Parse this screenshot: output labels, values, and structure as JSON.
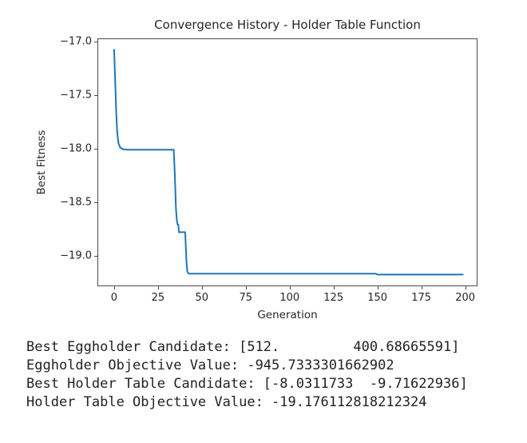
{
  "chart_data": {
    "type": "line",
    "title": "Convergence History - Holder Table Function",
    "xlabel": "Generation",
    "ylabel": "Best Fitness",
    "xlim": [
      -9.5,
      207
    ],
    "ylim": [
      -19.285,
      -16.97
    ],
    "grid": false,
    "legend": "none",
    "line_color": "#1f77b4",
    "axis_color": "#4a4a4a",
    "text_color": "#262626",
    "xticks": {
      "values": [
        0,
        25,
        50,
        75,
        100,
        125,
        150,
        175,
        200
      ],
      "labels": [
        "0",
        "25",
        "50",
        "75",
        "100",
        "125",
        "150",
        "175",
        "200"
      ]
    },
    "yticks": {
      "values": [
        -17.0,
        -17.5,
        -18.0,
        -18.5,
        -19.0
      ],
      "labels": [
        "−17.0",
        "−17.5",
        "−18.0",
        "−18.5",
        "−19.0"
      ]
    },
    "series": [
      {
        "name": "best_fitness_per_generation",
        "points": [
          [
            0,
            -17.07
          ],
          [
            0.7,
            -17.4
          ],
          [
            1.2,
            -17.65
          ],
          [
            1.8,
            -17.85
          ],
          [
            2.5,
            -17.95
          ],
          [
            3.5,
            -17.99
          ],
          [
            5,
            -18.005
          ],
          [
            8,
            -18.01
          ],
          [
            34,
            -18.01
          ],
          [
            34.6,
            -18.25
          ],
          [
            35.2,
            -18.55
          ],
          [
            35.8,
            -18.68
          ],
          [
            36.2,
            -18.71
          ],
          [
            36.6,
            -18.71
          ],
          [
            36.9,
            -18.78
          ],
          [
            40.5,
            -18.78
          ],
          [
            41.2,
            -19.05
          ],
          [
            41.7,
            -19.15
          ],
          [
            42.5,
            -19.167
          ],
          [
            149,
            -19.167
          ],
          [
            150,
            -19.176
          ],
          [
            199,
            -19.176
          ]
        ]
      }
    ]
  },
  "console": {
    "lines": [
      "Best Eggholder Candidate: [512.         400.68665591]",
      "Eggholder Objective Value: -945.7333301662902",
      "Best Holder Table Candidate: [-8.0311733  -9.71622936]",
      "Holder Table Objective Value: -19.176112818212324"
    ]
  }
}
